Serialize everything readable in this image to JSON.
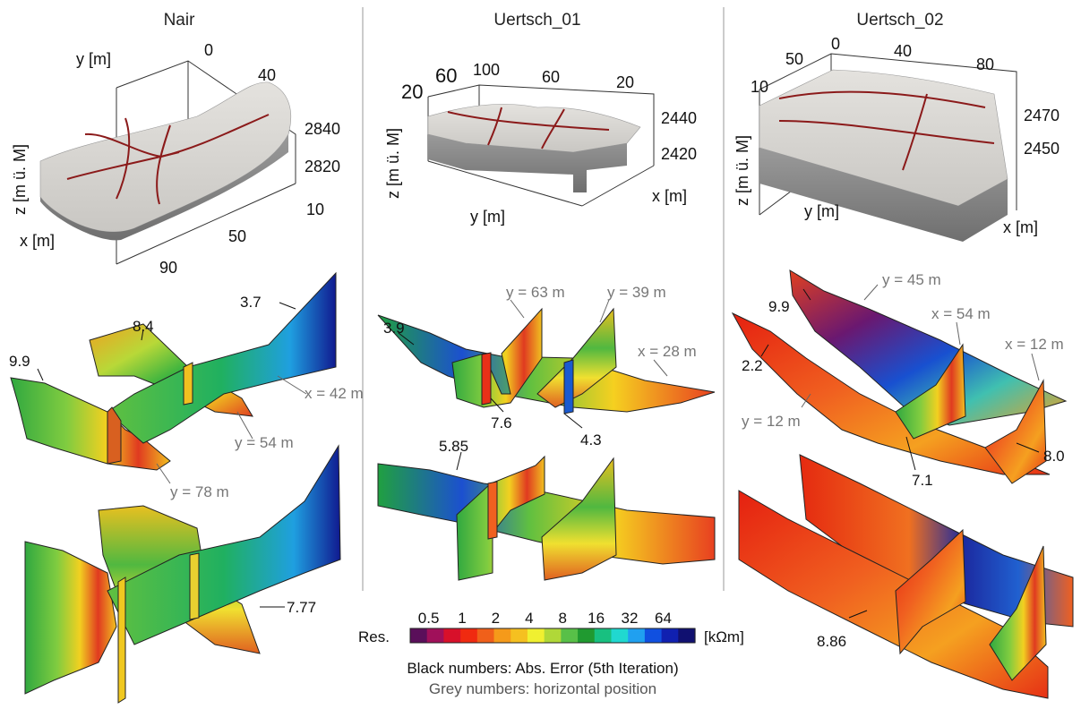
{
  "columns": [
    {
      "title": "Nair"
    },
    {
      "title": "Uertsch_01"
    },
    {
      "title": "Uertsch_02"
    }
  ],
  "nair": {
    "y_axis_label": "y [m]",
    "x_axis_label": "x [m]",
    "z_axis_label": "z [m ü. M]",
    "y_ticks": [
      "0",
      "40"
    ],
    "x_ticks": [
      "10",
      "50",
      "90"
    ],
    "z_ticks": [
      "2840",
      "2820"
    ],
    "err_top": [
      "3.7",
      "8.4",
      "9.9"
    ],
    "pos_top": [
      "x = 42 m",
      "y = 54 m",
      "y = 78 m"
    ],
    "err_bottom": [
      "7.77"
    ]
  },
  "uertsch01": {
    "y_axis_label": "y [m]",
    "x_axis_label": "x [m]",
    "z_axis_label": "z [m ü. M]",
    "x_ticks_big": [
      "20",
      "60"
    ],
    "y_ticks": [
      "100",
      "60",
      "20"
    ],
    "z_ticks": [
      "2440",
      "2420"
    ],
    "err_top": [
      "3.9",
      "7.6",
      "4.3"
    ],
    "pos_top": [
      "y = 63 m",
      "y = 39 m",
      "x = 28 m"
    ],
    "err_bottom": [
      "5.85"
    ]
  },
  "uertsch02": {
    "y_axis_label": "y [m]",
    "x_axis_label": "x [m]",
    "z_axis_label": "z [m ü. M]",
    "x_ticks": [
      "50",
      "10"
    ],
    "y_ticks": [
      "0",
      "40",
      "80"
    ],
    "z_ticks": [
      "2470",
      "2450"
    ],
    "err_top": [
      "9.9",
      "2.2",
      "7.1",
      "8.0"
    ],
    "pos_top": [
      "y = 45 m",
      "x = 54 m",
      "x = 12 m",
      "y = 12 m"
    ],
    "err_bottom": [
      "8.86"
    ]
  },
  "legend": {
    "label": "Res.",
    "unit": "[kΩm]",
    "ticks": [
      "0.5",
      "1",
      "2",
      "4",
      "8",
      "16",
      "32",
      "64"
    ],
    "colors": [
      "#5a0f5a",
      "#a0105a",
      "#d8102a",
      "#f02a10",
      "#f0601a",
      "#f59a1a",
      "#f5c020",
      "#f0f030",
      "#b0d838",
      "#58c048",
      "#209a30",
      "#18c080",
      "#20d8d0",
      "#20a0f0",
      "#1050e0",
      "#1020b0",
      "#101070"
    ]
  },
  "notes": {
    "line1": "Black numbers: Abs. Error (5th Iteration)",
    "line2": "Grey numbers: horizontal position"
  }
}
